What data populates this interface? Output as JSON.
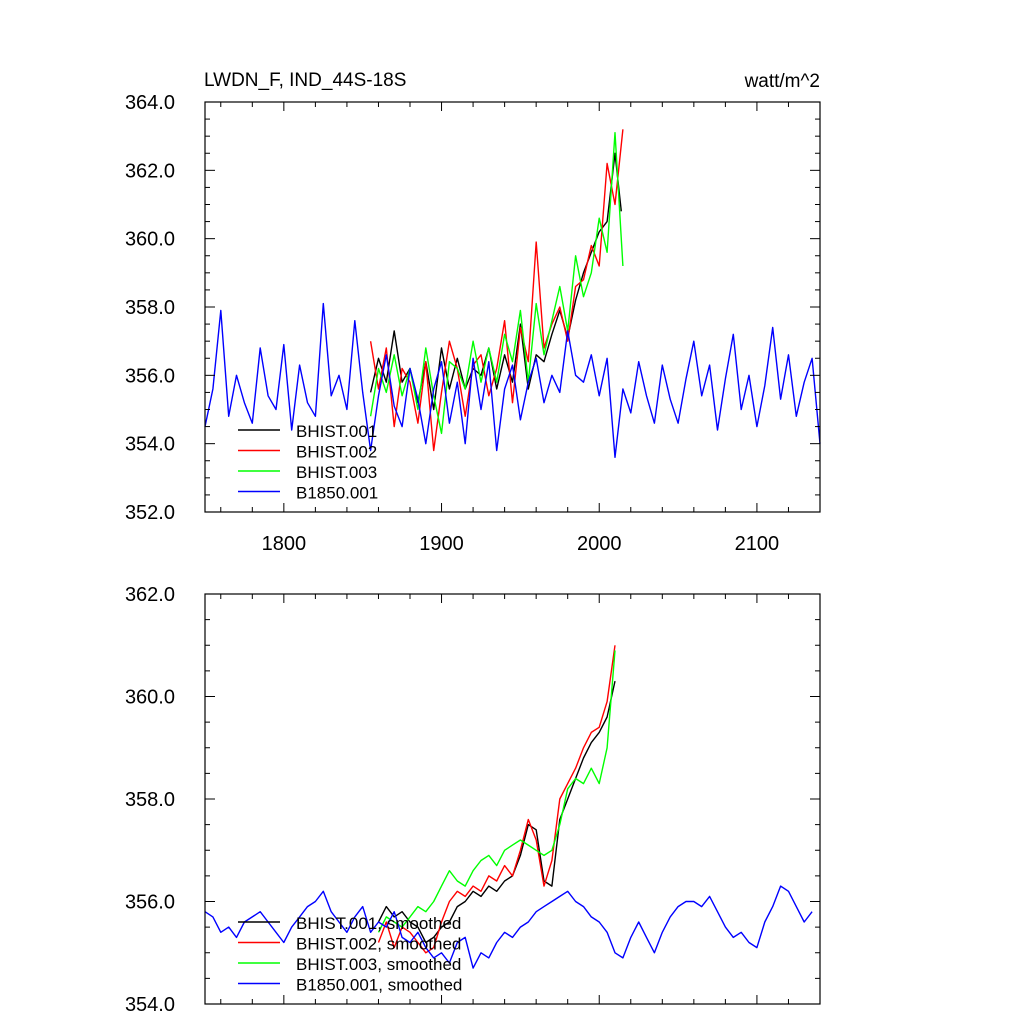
{
  "chart_data": [
    {
      "type": "line",
      "title_left": "LWDN_F, IND_44S-18S",
      "title_right": "watt/m^2",
      "xlabel": "",
      "ylabel": "",
      "xlim": [
        1750,
        2140
      ],
      "ylim": [
        352.0,
        364.0
      ],
      "x_ticks": [
        1800,
        1900,
        2000,
        2100
      ],
      "x_tick_labels": [
        "1800",
        "1900",
        "2000",
        "2100"
      ],
      "y_ticks": [
        352,
        354,
        356,
        358,
        360,
        362,
        364
      ],
      "y_tick_labels": [
        "352.0",
        "354.0",
        "356.0",
        "358.0",
        "360.0",
        "362.0",
        "364.0"
      ],
      "legend_position": "bottom-left",
      "series": [
        {
          "name": "BHIST.001",
          "color": "#000000",
          "x": [
            1855,
            1860,
            1865,
            1870,
            1875,
            1880,
            1885,
            1890,
            1895,
            1900,
            1905,
            1910,
            1915,
            1920,
            1925,
            1930,
            1935,
            1940,
            1945,
            1950,
            1955,
            1960,
            1965,
            1970,
            1975,
            1980,
            1985,
            1990,
            1995,
            2000,
            2005,
            2010,
            2014
          ],
          "y": [
            355.5,
            356.5,
            355.8,
            357.3,
            355.8,
            356.2,
            355.2,
            356.4,
            355.0,
            356.8,
            355.6,
            356.5,
            355.6,
            356.2,
            356.0,
            356.8,
            355.6,
            356.6,
            355.8,
            357.5,
            355.6,
            356.6,
            356.4,
            357.2,
            357.9,
            357.1,
            358.2,
            359.0,
            359.6,
            360.2,
            360.5,
            362.5,
            360.8
          ]
        },
        {
          "name": "BHIST.002",
          "color": "#ff0000",
          "x": [
            1855,
            1860,
            1865,
            1870,
            1875,
            1880,
            1885,
            1890,
            1895,
            1900,
            1905,
            1910,
            1915,
            1920,
            1925,
            1930,
            1935,
            1940,
            1945,
            1950,
            1955,
            1960,
            1965,
            1970,
            1975,
            1980,
            1985,
            1990,
            1995,
            2000,
            2005,
            2010,
            2015
          ],
          "y": [
            357.0,
            355.6,
            356.8,
            354.5,
            356.2,
            355.8,
            354.6,
            356.4,
            353.8,
            355.5,
            357.0,
            356.2,
            354.8,
            356.3,
            356.6,
            355.4,
            356.2,
            357.6,
            355.2,
            357.4,
            356.4,
            359.9,
            356.8,
            357.5,
            358.0,
            357.0,
            358.6,
            358.8,
            359.8,
            359.2,
            362.2,
            361.0,
            363.2
          ]
        },
        {
          "name": "BHIST.003",
          "color": "#00ff00",
          "x": [
            1855,
            1860,
            1865,
            1870,
            1875,
            1880,
            1885,
            1890,
            1895,
            1900,
            1905,
            1910,
            1915,
            1920,
            1925,
            1930,
            1935,
            1940,
            1945,
            1950,
            1955,
            1960,
            1965,
            1970,
            1975,
            1980,
            1985,
            1990,
            1995,
            2000,
            2005,
            2010,
            2015
          ],
          "y": [
            354.8,
            356.2,
            355.5,
            356.6,
            355.4,
            356.2,
            355.0,
            356.8,
            355.4,
            354.3,
            356.4,
            356.2,
            355.6,
            357.0,
            355.8,
            356.8,
            355.8,
            357.2,
            356.4,
            357.9,
            355.8,
            358.1,
            356.6,
            357.6,
            358.6,
            357.3,
            359.5,
            358.3,
            359.0,
            360.6,
            359.6,
            363.1,
            359.2
          ]
        },
        {
          "name": "B1850.001",
          "color": "#0000ff",
          "x": [
            1750,
            1755,
            1760,
            1765,
            1770,
            1775,
            1780,
            1785,
            1790,
            1795,
            1800,
            1805,
            1810,
            1815,
            1820,
            1825,
            1830,
            1835,
            1840,
            1845,
            1850,
            1855,
            1860,
            1865,
            1870,
            1875,
            1880,
            1885,
            1890,
            1895,
            1900,
            1905,
            1910,
            1915,
            1920,
            1925,
            1930,
            1935,
            1940,
            1945,
            1950,
            1955,
            1960,
            1965,
            1970,
            1975,
            1980,
            1985,
            1990,
            1995,
            2000,
            2005,
            2010,
            2015,
            2020,
            2025,
            2030,
            2035,
            2040,
            2045,
            2050,
            2055,
            2060,
            2065,
            2070,
            2075,
            2080,
            2085,
            2090,
            2095,
            2100,
            2105,
            2110,
            2115,
            2120,
            2125,
            2130,
            2135,
            2140
          ],
          "y": [
            354.5,
            355.6,
            357.9,
            354.8,
            356.0,
            355.2,
            354.6,
            356.8,
            355.4,
            355.0,
            356.9,
            354.4,
            356.3,
            355.2,
            354.8,
            358.1,
            355.4,
            356.0,
            355.0,
            357.6,
            355.5,
            353.8,
            355.4,
            356.6,
            355.1,
            354.5,
            356.2,
            355.3,
            354.0,
            355.6,
            356.4,
            354.6,
            355.8,
            354.0,
            356.5,
            355.0,
            356.4,
            353.8,
            355.6,
            356.3,
            354.7,
            355.8,
            356.5,
            355.2,
            356.0,
            355.5,
            357.3,
            356.0,
            355.8,
            356.6,
            355.4,
            356.5,
            353.6,
            355.6,
            354.9,
            356.4,
            355.4,
            354.6,
            356.3,
            355.3,
            354.6,
            355.9,
            357.0,
            355.4,
            356.3,
            354.4,
            355.9,
            357.2,
            355.0,
            356.0,
            354.5,
            355.7,
            357.4,
            355.3,
            356.6,
            354.8,
            355.8,
            356.5,
            354.0
          ]
        }
      ]
    },
    {
      "type": "line",
      "xlim": [
        1750,
        2140
      ],
      "ylim": [
        354.0,
        362.0
      ],
      "x_ticks": [
        1800,
        1900,
        2000,
        2100
      ],
      "y_ticks": [
        354,
        356,
        358,
        360,
        362
      ],
      "y_tick_labels": [
        "354.0",
        "356.0",
        "358.0",
        "360.0",
        "362.0"
      ],
      "legend_position": "bottom-left",
      "series": [
        {
          "name": "BHIST.001, smoothed",
          "color": "#000000",
          "x": [
            1860,
            1865,
            1870,
            1875,
            1880,
            1885,
            1890,
            1895,
            1900,
            1905,
            1910,
            1915,
            1920,
            1925,
            1930,
            1935,
            1940,
            1945,
            1950,
            1955,
            1960,
            1965,
            1970,
            1975,
            1980,
            1985,
            1990,
            1995,
            2000,
            2005,
            2010
          ],
          "y": [
            355.6,
            355.9,
            355.7,
            355.8,
            355.6,
            355.5,
            355.2,
            355.3,
            355.5,
            355.6,
            355.9,
            356.0,
            356.2,
            356.1,
            356.3,
            356.2,
            356.4,
            356.5,
            356.9,
            357.5,
            357.4,
            356.4,
            356.3,
            357.6,
            358.0,
            358.4,
            358.8,
            359.1,
            359.3,
            359.6,
            360.3
          ]
        },
        {
          "name": "BHIST.002, smoothed",
          "color": "#ff0000",
          "x": [
            1860,
            1865,
            1870,
            1875,
            1880,
            1885,
            1890,
            1895,
            1900,
            1905,
            1910,
            1915,
            1920,
            1925,
            1930,
            1935,
            1940,
            1945,
            1950,
            1955,
            1960,
            1965,
            1970,
            1975,
            1980,
            1985,
            1990,
            1995,
            2000,
            2005,
            2010
          ],
          "y": [
            355.2,
            355.6,
            355.1,
            355.5,
            355.4,
            355.2,
            355.0,
            355.1,
            355.6,
            356.0,
            356.2,
            356.1,
            356.3,
            356.2,
            356.5,
            356.4,
            356.7,
            356.5,
            357.0,
            357.6,
            357.2,
            356.3,
            356.8,
            358.0,
            358.3,
            358.6,
            359.0,
            359.3,
            359.4,
            359.9,
            361.0
          ]
        },
        {
          "name": "BHIST.003, smoothed",
          "color": "#00ff00",
          "x": [
            1860,
            1865,
            1870,
            1875,
            1880,
            1885,
            1890,
            1895,
            1900,
            1905,
            1910,
            1915,
            1920,
            1925,
            1930,
            1935,
            1940,
            1945,
            1950,
            1955,
            1960,
            1965,
            1970,
            1975,
            1980,
            1985,
            1990,
            1995,
            2000,
            2005,
            2010
          ],
          "y": [
            355.4,
            355.7,
            355.6,
            355.5,
            355.7,
            355.9,
            355.8,
            356.0,
            356.3,
            356.6,
            356.4,
            356.3,
            356.6,
            356.8,
            356.9,
            356.7,
            357.0,
            357.1,
            357.2,
            357.1,
            357.0,
            356.9,
            357.0,
            357.5,
            358.2,
            358.4,
            358.3,
            358.6,
            358.3,
            359.0,
            360.9
          ]
        },
        {
          "name": "B1850.001, smoothed",
          "color": "#0000ff",
          "x": [
            1750,
            1755,
            1760,
            1765,
            1770,
            1775,
            1780,
            1785,
            1790,
            1795,
            1800,
            1805,
            1810,
            1815,
            1820,
            1825,
            1830,
            1835,
            1840,
            1845,
            1850,
            1855,
            1860,
            1865,
            1870,
            1875,
            1880,
            1885,
            1890,
            1895,
            1900,
            1905,
            1910,
            1915,
            1920,
            1925,
            1930,
            1935,
            1940,
            1945,
            1950,
            1955,
            1960,
            1965,
            1970,
            1975,
            1980,
            1985,
            1990,
            1995,
            2000,
            2005,
            2010,
            2015,
            2020,
            2025,
            2030,
            2035,
            2040,
            2045,
            2050,
            2055,
            2060,
            2065,
            2070,
            2075,
            2080,
            2085,
            2090,
            2095,
            2100,
            2105,
            2110,
            2115,
            2120,
            2125,
            2130,
            2135
          ],
          "y": [
            355.8,
            355.7,
            355.4,
            355.5,
            355.3,
            355.6,
            355.7,
            355.8,
            355.6,
            355.4,
            355.2,
            355.5,
            355.7,
            355.9,
            356.0,
            356.2,
            355.8,
            355.6,
            355.4,
            355.7,
            355.9,
            355.4,
            355.6,
            355.5,
            355.8,
            355.3,
            355.2,
            355.4,
            355.1,
            354.9,
            355.0,
            354.8,
            355.2,
            355.3,
            354.7,
            355.0,
            354.9,
            355.2,
            355.4,
            355.3,
            355.5,
            355.6,
            355.8,
            355.9,
            356.0,
            356.1,
            356.2,
            356.0,
            355.9,
            355.7,
            355.6,
            355.4,
            355.0,
            354.9,
            355.3,
            355.6,
            355.3,
            355.0,
            355.4,
            355.7,
            355.9,
            356.0,
            356.0,
            355.9,
            356.1,
            355.8,
            355.5,
            355.3,
            355.4,
            355.2,
            355.1,
            355.6,
            355.9,
            356.3,
            356.2,
            355.9,
            355.6,
            355.8
          ]
        }
      ]
    }
  ]
}
